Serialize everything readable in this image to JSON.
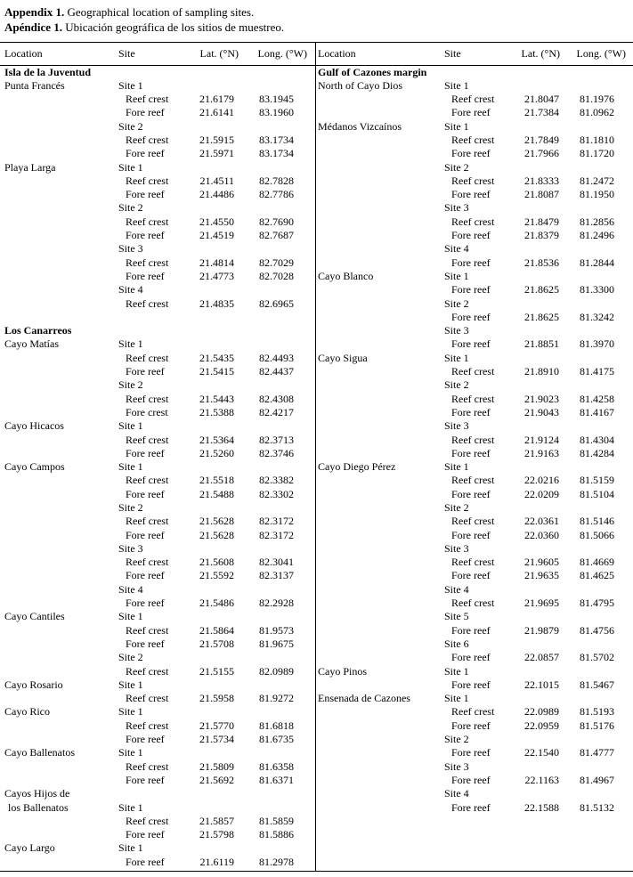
{
  "title": {
    "en_bold": "Appendix 1.",
    "en_rest": " Geographical location of sampling sites.",
    "es_bold": "Apéndice 1.",
    "es_rest": " Ubicación geográfica de los sitios de muestreo."
  },
  "colors": {
    "text": "#000000",
    "background": "#ffffff",
    "rule": "#000000"
  },
  "table": {
    "headers": [
      "Location",
      "Site",
      "Lat. (°N)",
      "Long. (°W)"
    ],
    "left_rows": [
      {
        "loc": "Isla de la Juventud",
        "bold": true
      },
      {
        "loc": "Punta Francés",
        "site": "Site 1"
      },
      {
        "reef": "Reef crest",
        "lat": "21.6179",
        "lon": "83.1945"
      },
      {
        "reef": "Fore reef",
        "lat": "21.6141",
        "lon": "83.1960"
      },
      {
        "site": "Site 2"
      },
      {
        "reef": "Reef crest",
        "lat": "21.5915",
        "lon": "83.1734"
      },
      {
        "reef": "Fore reef",
        "lat": "21.5971",
        "lon": "83.1734"
      },
      {
        "loc": "Playa Larga",
        "site": "Site 1"
      },
      {
        "reef": "Reef crest",
        "lat": "21.4511",
        "lon": "82.7828"
      },
      {
        "reef": "Fore reef",
        "lat": "21.4486",
        "lon": "82.7786"
      },
      {
        "site": "Site 2"
      },
      {
        "reef": "Reef crest",
        "lat": "21.4550",
        "lon": "82.7690"
      },
      {
        "reef": "Fore reef",
        "lat": "21.4519",
        "lon": "82.7687"
      },
      {
        "site": "Site 3"
      },
      {
        "reef": "Reef crest",
        "lat": "21.4814",
        "lon": "82.7029"
      },
      {
        "reef": "Fore reef",
        "lat": "21.4773",
        "lon": "82.7028"
      },
      {
        "site": "Site 4"
      },
      {
        "reef": "Reef crest",
        "lat": "21.4835",
        "lon": "82.6965"
      },
      {
        "blank": true
      },
      {
        "loc": "Los Canarreos",
        "bold": true
      },
      {
        "loc": "Cayo Matías",
        "site": "Site 1"
      },
      {
        "reef": "Reef crest",
        "lat": "21.5435",
        "lon": "82.4493"
      },
      {
        "reef": "Fore reef",
        "lat": "21.5415",
        "lon": "82.4437"
      },
      {
        "site": "Site 2"
      },
      {
        "reef": "Reef crest",
        "lat": "21.5443",
        "lon": "82.4308"
      },
      {
        "reef": "Fore crest",
        "lat": "21.5388",
        "lon": "82.4217"
      },
      {
        "loc": "Cayo Hicacos",
        "site": "Site 1"
      },
      {
        "reef": "Reef crest",
        "lat": "21.5364",
        "lon": "82.3713"
      },
      {
        "reef": "Fore reef",
        "lat": "21.5260",
        "lon": "82.3746"
      },
      {
        "loc": "Cayo Campos",
        "site": "Site 1"
      },
      {
        "reef": "Reef crest",
        "lat": "21.5518",
        "lon": "82.3382"
      },
      {
        "reef": "Fore reef",
        "lat": "21.5488",
        "lon": "82.3302"
      },
      {
        "site": "Site 2"
      },
      {
        "reef": "Reef crest",
        "lat": "21.5628",
        "lon": "82.3172"
      },
      {
        "reef": "Fore reef",
        "lat": "21.5628",
        "lon": "82.3172"
      },
      {
        "site": "Site 3"
      },
      {
        "reef": "Reef crest",
        "lat": "21.5608",
        "lon": "82.3041"
      },
      {
        "reef": "Fore reef",
        "lat": "21.5592",
        "lon": "82.3137"
      },
      {
        "site": "Site 4"
      },
      {
        "reef": "Fore reef",
        "lat": "21.5486",
        "lon": "82.2928"
      },
      {
        "loc": "Cayo Cantiles",
        "site": "Site 1"
      },
      {
        "reef": "Reef crest",
        "lat": "21.5864",
        "lon": "81.9573"
      },
      {
        "reef": "Fore reef",
        "lat": "21.5708",
        "lon": "81.9675"
      },
      {
        "site": "Site 2"
      },
      {
        "reef": "Reef crest",
        "lat": "21.5155",
        "lon": "82.0989"
      },
      {
        "loc": "Cayo Rosario",
        "site": "Site 1"
      },
      {
        "reef": "Reef crest",
        "lat": "21.5958",
        "lon": "81.9272"
      },
      {
        "loc": "Cayo Rico",
        "site": "Site 1"
      },
      {
        "reef": "Reef crest",
        "lat": "21.5770",
        "lon": "81.6818"
      },
      {
        "reef": "Fore reef",
        "lat": "21.5734",
        "lon": "81.6735"
      },
      {
        "loc": "Cayo Ballenatos",
        "site": "Site 1"
      },
      {
        "reef": "Reef crest",
        "lat": "21.5809",
        "lon": "81.6358"
      },
      {
        "reef": "Fore reef",
        "lat": "21.5692",
        "lon": "81.6371"
      },
      {
        "loc": "Cayos Hijos de"
      },
      {
        "loc": "los Ballenatos",
        "site": "Site 1",
        "locIndent": true
      },
      {
        "reef": "Reef crest",
        "lat": "21.5857",
        "lon": "81.5859"
      },
      {
        "reef": "Fore reef",
        "lat": "21.5798",
        "lon": "81.5886"
      },
      {
        "loc": "Cayo Largo",
        "site": "Site 1"
      },
      {
        "reef": "Fore reef",
        "lat": "21.6119",
        "lon": "81.2978"
      }
    ],
    "right_rows": [
      {
        "loc": "Gulf of Cazones margin",
        "bold": true
      },
      {
        "loc": "North of Cayo Dios",
        "site": "Site 1"
      },
      {
        "reef": "Reef crest",
        "lat": "21.8047",
        "lon": "81.1976"
      },
      {
        "reef": "Fore reef",
        "lat": "21.7384",
        "lon": "81.0962"
      },
      {
        "loc": "Médanos Vizcaínos",
        "site": "Site 1"
      },
      {
        "reef": "Reef crest",
        "lat": "21.7849",
        "lon": "81.1810"
      },
      {
        "reef": "Fore reef",
        "lat": "21.7966",
        "lon": "81.1720"
      },
      {
        "site": "Site 2"
      },
      {
        "reef": "Reef crest",
        "lat": "21.8333",
        "lon": "81.2472"
      },
      {
        "reef": "Fore reef",
        "lat": "21.8087",
        "lon": "81.1950"
      },
      {
        "site": "Site 3"
      },
      {
        "reef": "Reef crest",
        "lat": "21.8479",
        "lon": "81.2856"
      },
      {
        "reef": "Fore reef",
        "lat": "21.8379",
        "lon": "81.2496"
      },
      {
        "site": "Site 4"
      },
      {
        "reef": "Fore reef",
        "lat": "21.8536",
        "lon": "81.2844"
      },
      {
        "loc": "Cayo Blanco",
        "site": "Site 1"
      },
      {
        "reef": "Fore reef",
        "lat": "21.8625",
        "lon": "81.3300"
      },
      {
        "site": "Site 2"
      },
      {
        "reef": "Fore reef",
        "lat": "21.8625",
        "lon": "81.3242"
      },
      {
        "site": "Site 3"
      },
      {
        "reef": "Fore reef",
        "lat": "21.8851",
        "lon": "81.3970"
      },
      {
        "loc": "Cayo Sigua",
        "site": "Site 1"
      },
      {
        "reef": "Reef crest",
        "lat": "21.8910",
        "lon": "81.4175"
      },
      {
        "site": "Site 2"
      },
      {
        "reef": "Reef crest",
        "lat": "21.9023",
        "lon": "81.4258"
      },
      {
        "reef": "Fore reef",
        "lat": "21.9043",
        "lon": "81.4167"
      },
      {
        "site": "Site 3"
      },
      {
        "reef": "Reef crest",
        "lat": "21.9124",
        "lon": "81.4304"
      },
      {
        "reef": "Fore reef",
        "lat": "21.9163",
        "lon": "81.4284"
      },
      {
        "loc": "Cayo Diego Pérez",
        "site": "Site 1"
      },
      {
        "reef": "Reef crest",
        "lat": "22.0216",
        "lon": "81.5159"
      },
      {
        "reef": "Fore reef",
        "lat": "22.0209",
        "lon": "81.5104"
      },
      {
        "site": "Site 2"
      },
      {
        "reef": "Reef crest",
        "lat": "22.0361",
        "lon": "81.5146"
      },
      {
        "reef": "Fore reef",
        "lat": "22.0360",
        "lon": "81.5066"
      },
      {
        "site": "Site 3"
      },
      {
        "reef": "Reef crest",
        "lat": "21.9605",
        "lon": "81.4669"
      },
      {
        "reef": "Fore reef",
        "lat": "21.9635",
        "lon": "81.4625"
      },
      {
        "site": "Site 4"
      },
      {
        "reef": "Reef crest",
        "lat": "21.9695",
        "lon": "81.4795"
      },
      {
        "site": "Site 5"
      },
      {
        "reef": "Fore reef",
        "lat": "21.9879",
        "lon": "81.4756"
      },
      {
        "site": "Site 6"
      },
      {
        "reef": "Fore reef",
        "lat": "22.0857",
        "lon": "81.5702"
      },
      {
        "loc": "Cayo Pinos",
        "site": "Site 1"
      },
      {
        "reef": "Fore reef",
        "lat": "22.1015",
        "lon": "81.5467"
      },
      {
        "loc": "Ensenada de Cazones",
        "site": "Site 1"
      },
      {
        "reef": "Reef crest",
        "lat": "22.0989",
        "lon": "81.5193"
      },
      {
        "reef": "Fore reef",
        "lat": "22.0959",
        "lon": "81.5176"
      },
      {
        "site": "Site 2"
      },
      {
        "reef": "Fore reef",
        "lat": "22.1540",
        "lon": "81.4777"
      },
      {
        "site": "Site 3"
      },
      {
        "reef": "Fore reef",
        "lat": "22.1163",
        "lon": "81.4967"
      },
      {
        "site": "Site 4"
      },
      {
        "reef": "Fore reef",
        "lat": "22.1588",
        "lon": "81.5132"
      }
    ]
  }
}
